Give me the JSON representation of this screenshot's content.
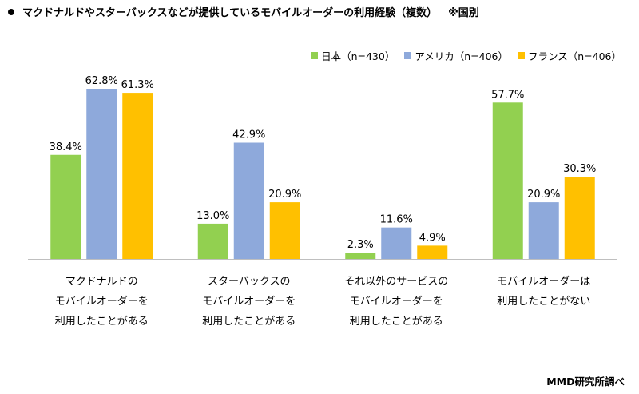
{
  "title": "マクドナルドやスターバックスなどが提供しているモバイルオーダーの利用経験（複数）",
  "note": "※国別",
  "source": "MMD研究所調べ",
  "chart_data": {
    "type": "bar",
    "categories": [
      [
        "マクドナルドの",
        "モバイルオーダーを",
        "利用したことがある"
      ],
      [
        "スターバックスの",
        "モバイルオーダーを",
        "利用したことがある"
      ],
      [
        "それ以外のサービスの",
        "モバイルオーダーを",
        "利用したことがある"
      ],
      [
        "モバイルオーダーは",
        "利用したことがない"
      ]
    ],
    "series": [
      {
        "name": "日本（n=430）",
        "color": "#92D050",
        "values": [
          38.4,
          13.0,
          2.3,
          57.7
        ],
        "labels": [
          "38.4%",
          "13.0%",
          "2.3%",
          "57.7%"
        ]
      },
      {
        "name": "アメリカ（n=406）",
        "color": "#8EA9DB",
        "values": [
          62.8,
          42.9,
          11.6,
          20.9
        ],
        "labels": [
          "62.8%",
          "42.9%",
          "11.6%",
          "20.9%"
        ]
      },
      {
        "name": "フランス（n=406）",
        "color": "#FFC000",
        "values": [
          61.3,
          20.9,
          4.9,
          30.3
        ],
        "labels": [
          "61.3%",
          "20.9%",
          "4.9%",
          "30.3%"
        ]
      }
    ],
    "ylim": [
      0,
      62.8
    ],
    "grid": false,
    "legend": "top-right"
  }
}
